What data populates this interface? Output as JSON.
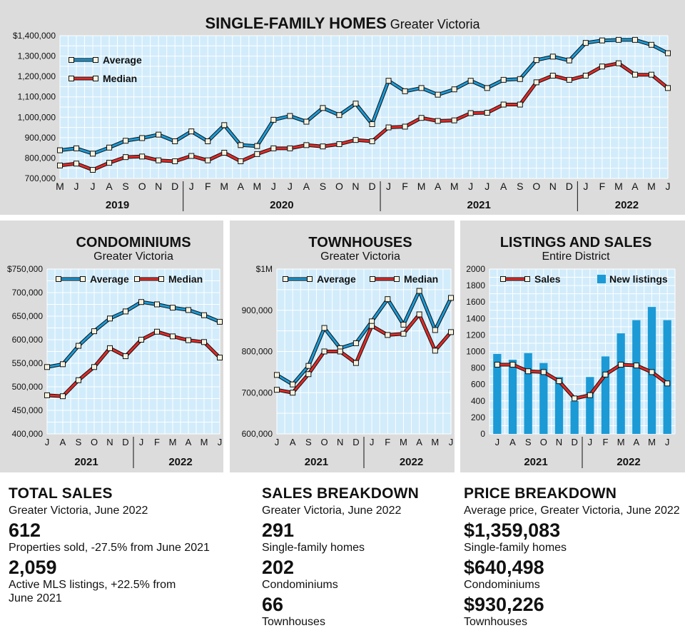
{
  "colors": {
    "panel": "#dcdcdc",
    "plot_bg": "#d2ecfb",
    "grid": "#ffffff",
    "average": "#1b9ad6",
    "median": "#e12a27",
    "bars": "#1b9ad6"
  },
  "chart_data": [
    {
      "id": "single_family",
      "type": "line",
      "title": "SINGLE-FAMILY HOMES",
      "subtitle": "Greater Victoria",
      "x": [
        "M",
        "J",
        "J",
        "A",
        "S",
        "O",
        "N",
        "D",
        "J",
        "F",
        "M",
        "A",
        "M",
        "J",
        "J",
        "A",
        "S",
        "O",
        "N",
        "D",
        "J",
        "F",
        "M",
        "A",
        "M",
        "J",
        "J",
        "A",
        "S",
        "O",
        "N",
        "D",
        "J",
        "F",
        "M",
        "A",
        "M",
        "J"
      ],
      "year_labels": [
        "2019",
        "2020",
        "2021",
        "2022"
      ],
      "year_spans": [
        [
          0,
          7
        ],
        [
          8,
          19
        ],
        [
          20,
          31
        ],
        [
          32,
          37
        ]
      ],
      "y_ticks": [
        "$1,400,000",
        "1,300,000",
        "1,200,000",
        "1,100,000",
        "1,000,000",
        "900,000",
        "800,000",
        "700,000"
      ],
      "ylim": [
        700000,
        1450000
      ],
      "legend_position": "top-left",
      "series": [
        {
          "name": "Average",
          "values": [
            848000,
            858000,
            830000,
            862000,
            898000,
            912000,
            930000,
            895000,
            947000,
            895000,
            980000,
            875000,
            870000,
            1008000,
            1028000,
            998000,
            1070000,
            1033000,
            1093000,
            985000,
            1213000,
            1158000,
            1175000,
            1140000,
            1168000,
            1213000,
            1175000,
            1218000,
            1222000,
            1322000,
            1340000,
            1320000,
            1412000,
            1425000,
            1428000,
            1428000,
            1402000,
            1358000
          ]
        },
        {
          "name": "Median",
          "values": [
            768000,
            778000,
            745000,
            782000,
            812000,
            815000,
            795000,
            790000,
            818000,
            795000,
            835000,
            790000,
            828000,
            858000,
            858000,
            875000,
            868000,
            880000,
            902000,
            895000,
            968000,
            972000,
            1018000,
            1002000,
            1005000,
            1043000,
            1045000,
            1088000,
            1088000,
            1205000,
            1240000,
            1218000,
            1240000,
            1288000,
            1305000,
            1245000,
            1245000,
            1175000
          ]
        }
      ]
    },
    {
      "id": "condos",
      "type": "line",
      "title": "CONDOMINIUMS",
      "subtitle": "Greater Victoria",
      "x": [
        "J",
        "A",
        "S",
        "O",
        "N",
        "D",
        "J",
        "F",
        "M",
        "A",
        "M",
        "J"
      ],
      "year_labels": [
        "2021",
        "2022"
      ],
      "year_spans": [
        [
          0,
          5
        ],
        [
          6,
          11
        ]
      ],
      "y_ticks": [
        "$750,000",
        "700,000",
        "650,000",
        "600,000",
        "550,000",
        "500,000",
        "450,000",
        "400,000"
      ],
      "ylim": [
        400000,
        750000
      ],
      "legend_position": "top",
      "series": [
        {
          "name": "Average",
          "values": [
            542000,
            548000,
            587000,
            618000,
            645000,
            660000,
            680000,
            675000,
            668000,
            663000,
            652000,
            638000
          ]
        },
        {
          "name": "Median",
          "values": [
            482000,
            480000,
            514000,
            542000,
            582000,
            565000,
            600000,
            617000,
            607000,
            599000,
            595000,
            562000
          ]
        }
      ]
    },
    {
      "id": "townhouses",
      "type": "line",
      "title": "TOWNHOUSES",
      "subtitle": "Greater Victoria",
      "x": [
        "J",
        "A",
        "S",
        "O",
        "N",
        "D",
        "J",
        "F",
        "M",
        "A",
        "M",
        "J"
      ],
      "year_labels": [
        "2021",
        "2022"
      ],
      "year_spans": [
        [
          0,
          5
        ],
        [
          6,
          11
        ]
      ],
      "y_ticks": [
        "$1M",
        "900,000",
        "800,000",
        "700,000",
        "600,000"
      ],
      "ylim": [
        600000,
        1000000
      ],
      "legend_position": "top",
      "series": [
        {
          "name": "Average",
          "values": [
            743000,
            720000,
            765000,
            857000,
            808000,
            820000,
            873000,
            927000,
            865000,
            947000,
            852000,
            930000
          ]
        },
        {
          "name": "Median",
          "values": [
            707000,
            700000,
            745000,
            800000,
            800000,
            772000,
            862000,
            840000,
            843000,
            890000,
            802000,
            847000
          ]
        }
      ]
    },
    {
      "id": "listings_sales",
      "type": "bar",
      "title": "LISTINGS AND SALES",
      "subtitle": "Entire District",
      "x": [
        "J",
        "A",
        "S",
        "O",
        "N",
        "D",
        "J",
        "F",
        "M",
        "A",
        "M",
        "J"
      ],
      "year_labels": [
        "2021",
        "2022"
      ],
      "year_spans": [
        [
          0,
          5
        ],
        [
          6,
          11
        ]
      ],
      "y_ticks": [
        "2000",
        "1800",
        "1600",
        "1400",
        "1200",
        "1000",
        "800",
        "600",
        "400",
        "200",
        "0"
      ],
      "ylim": [
        0,
        2000
      ],
      "legend_position": "top",
      "series": [
        {
          "name": "Sales",
          "kind": "line",
          "values": [
            840,
            840,
            760,
            750,
            640,
            430,
            470,
            720,
            840,
            830,
            750,
            612
          ]
        },
        {
          "name": "New listings",
          "kind": "bar",
          "values": [
            970,
            900,
            980,
            860,
            690,
            400,
            690,
            940,
            1220,
            1380,
            1540,
            1380
          ]
        }
      ]
    }
  ],
  "stats": {
    "total": {
      "heading": "TOTAL SALES",
      "sub": "Greater Victoria, June 2022",
      "items": [
        {
          "value": "612",
          "desc": "Properties sold, -27.5% from June 2021"
        },
        {
          "value": "2,059",
          "desc": "Active MLS listings, +22.5% from June 2021"
        }
      ]
    },
    "breakdown": {
      "heading": "SALES BREAKDOWN",
      "sub": "Greater Victoria, June 2022",
      "items": [
        {
          "value": "291",
          "desc": "Single-family homes"
        },
        {
          "value": "202",
          "desc": "Condominiums"
        },
        {
          "value": "66",
          "desc": "Townhouses"
        }
      ]
    },
    "price": {
      "heading": "PRICE BREAKDOWN",
      "sub": "Average price, Greater Victoria, June 2022",
      "items": [
        {
          "value": "$1,359,083",
          "desc": "Single-family homes"
        },
        {
          "value": "$640,498",
          "desc": "Condominiums"
        },
        {
          "value": "$930,226",
          "desc": "Townhouses"
        }
      ]
    }
  }
}
